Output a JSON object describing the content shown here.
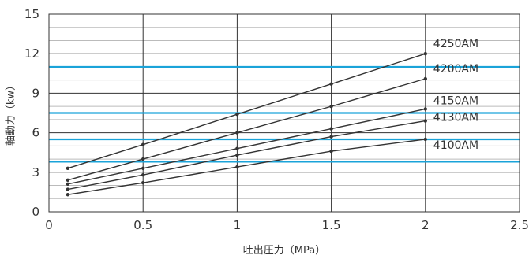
{
  "chart_data": {
    "type": "line",
    "title": "",
    "xlabel": "吐出圧力（MPa）",
    "ylabel": "軸動力（kw）",
    "xlim": [
      0,
      2.5
    ],
    "ylim": [
      0,
      15
    ],
    "x_ticks": [
      0,
      0.5,
      1,
      1.5,
      2,
      2.5
    ],
    "x_tick_labels": [
      "0",
      "0.5",
      "1",
      "1.5",
      "2",
      "2.5"
    ],
    "y_ticks": [
      0,
      3,
      6,
      9,
      12,
      15
    ],
    "y_tick_labels": [
      "0",
      "3",
      "6",
      "9",
      "12",
      "15"
    ],
    "grid": true,
    "legend": "none",
    "series": [
      {
        "name": "4250AM",
        "x": [
          0.1,
          0.5,
          1,
          1.5,
          2
        ],
        "y": [
          3.3,
          5.1,
          7.4,
          9.7,
          12.0
        ]
      },
      {
        "name": "4200AM",
        "x": [
          0.1,
          0.5,
          1,
          1.5,
          2
        ],
        "y": [
          2.4,
          4.0,
          6.0,
          8.0,
          10.1
        ]
      },
      {
        "name": "4150AM",
        "x": [
          0.1,
          0.5,
          1,
          1.5,
          2
        ],
        "y": [
          2.1,
          3.3,
          4.8,
          6.3,
          7.8
        ]
      },
      {
        "name": "4130AM",
        "x": [
          0.1,
          0.5,
          1,
          1.5,
          2
        ],
        "y": [
          1.7,
          2.8,
          4.3,
          5.7,
          6.9
        ]
      },
      {
        "name": "4100AM",
        "x": [
          0.1,
          0.5,
          1,
          1.5,
          2
        ],
        "y": [
          1.3,
          2.2,
          3.4,
          4.6,
          5.5
        ]
      }
    ],
    "reference_lines": {
      "orientation": "horizontal",
      "y": [
        3.8,
        5.5,
        7.5,
        11.0
      ],
      "color": "#1aa3d9"
    },
    "colors": {
      "series": "#333333",
      "reference": "#1aa3d9",
      "grid_major": "#333333",
      "grid_minor": "#bbbbbb"
    }
  }
}
